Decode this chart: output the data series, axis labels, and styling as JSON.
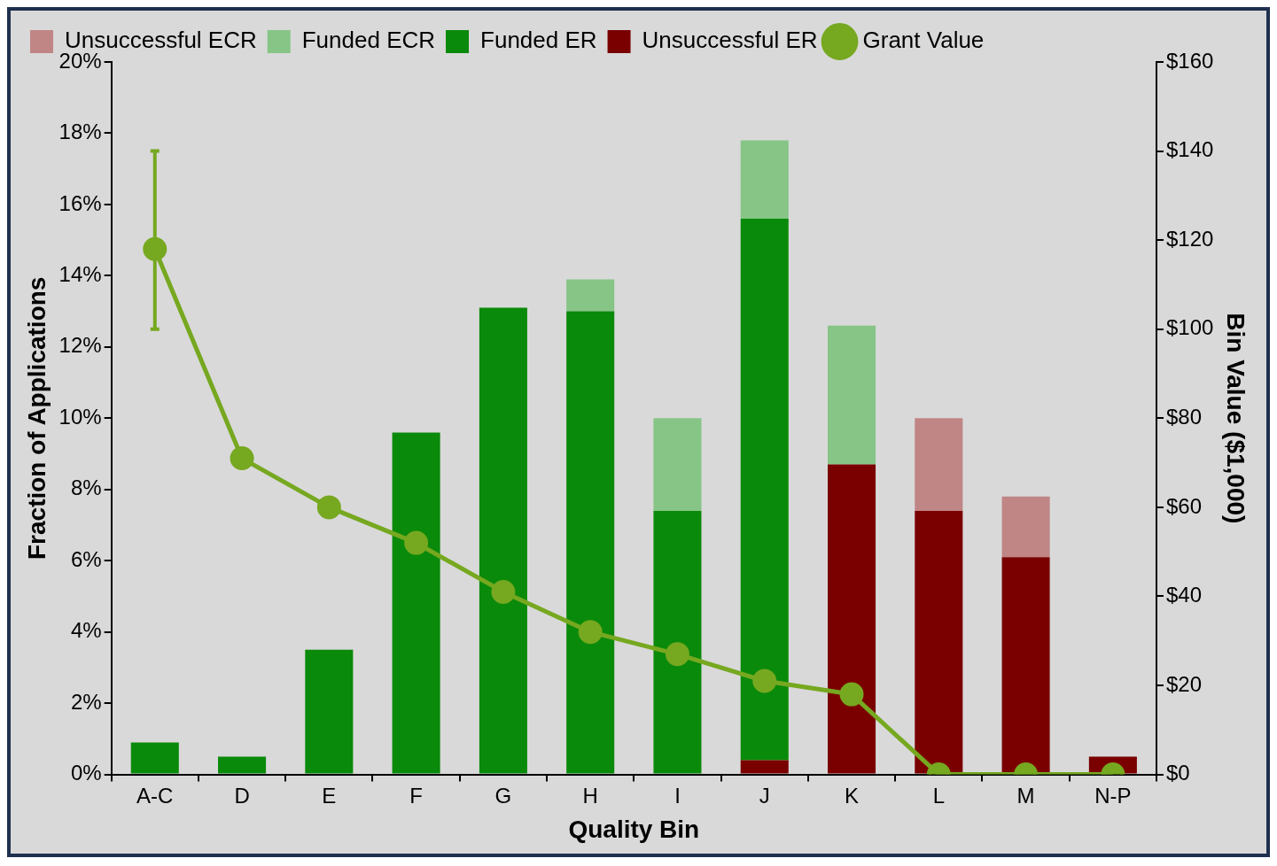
{
  "chart_data": {
    "type": "bar",
    "xlabel": "Quality Bin",
    "ylabel": "Fraction of Applications",
    "y2label": "Bin Value ($1,000)",
    "categories": [
      "A-C",
      "D",
      "E",
      "F",
      "G",
      "H",
      "I",
      "J",
      "K",
      "L",
      "M",
      "N-P"
    ],
    "stacked": true,
    "legend": "top",
    "grid": false,
    "ylim": [
      0,
      20
    ],
    "yticks": [
      {
        "value": 0,
        "label": "0%"
      },
      {
        "value": 2,
        "label": "2%"
      },
      {
        "value": 4,
        "label": "4%"
      },
      {
        "value": 6,
        "label": "6%"
      },
      {
        "value": 8,
        "label": "8%"
      },
      {
        "value": 10,
        "label": "10%"
      },
      {
        "value": 12,
        "label": "12%"
      },
      {
        "value": 14,
        "label": "14%"
      },
      {
        "value": 16,
        "label": "16%"
      },
      {
        "value": 18,
        "label": "18%"
      },
      {
        "value": 20,
        "label": "20%"
      }
    ],
    "y2lim": [
      0,
      160
    ],
    "y2ticks": [
      {
        "value": 0,
        "label": "$0"
      },
      {
        "value": 20,
        "label": "$20"
      },
      {
        "value": 40,
        "label": "$40"
      },
      {
        "value": 60,
        "label": "$60"
      },
      {
        "value": 80,
        "label": "$80"
      },
      {
        "value": 100,
        "label": "$100"
      },
      {
        "value": 120,
        "label": "$120"
      },
      {
        "value": 140,
        "label": "$140"
      },
      {
        "value": 160,
        "label": "$160"
      }
    ],
    "series": [
      {
        "name": "Unsuccessful ER",
        "color": "#7a0000",
        "values": [
          null,
          null,
          null,
          null,
          null,
          null,
          null,
          0.4,
          8.7,
          7.4,
          6.1,
          0.5
        ]
      },
      {
        "name": "Funded ER",
        "color": "#0a8a0a",
        "values": [
          0.9,
          0.5,
          3.5,
          9.6,
          13.1,
          13.0,
          7.4,
          15.2,
          null,
          null,
          null,
          null
        ]
      },
      {
        "name": "Funded ECR",
        "color": "#86c586",
        "values": [
          null,
          null,
          null,
          null,
          null,
          0.9,
          2.6,
          2.2,
          3.9,
          null,
          null,
          null
        ]
      },
      {
        "name": "Unsuccessful ECR",
        "color": "#c08585",
        "values": [
          null,
          null,
          null,
          null,
          null,
          null,
          null,
          null,
          null,
          2.6,
          1.7,
          null
        ]
      },
      {
        "name": "Grant Value",
        "type": "line",
        "axis": "y2",
        "color": "#76a820",
        "marker": "circle",
        "line_style": "solid",
        "values": [
          118,
          71,
          60,
          52,
          41,
          32,
          27,
          21,
          18,
          0,
          0,
          0
        ],
        "errors": [
          [
            100,
            140
          ],
          null,
          null,
          null,
          null,
          null,
          null,
          null,
          null,
          null,
          null,
          null
        ]
      }
    ]
  }
}
